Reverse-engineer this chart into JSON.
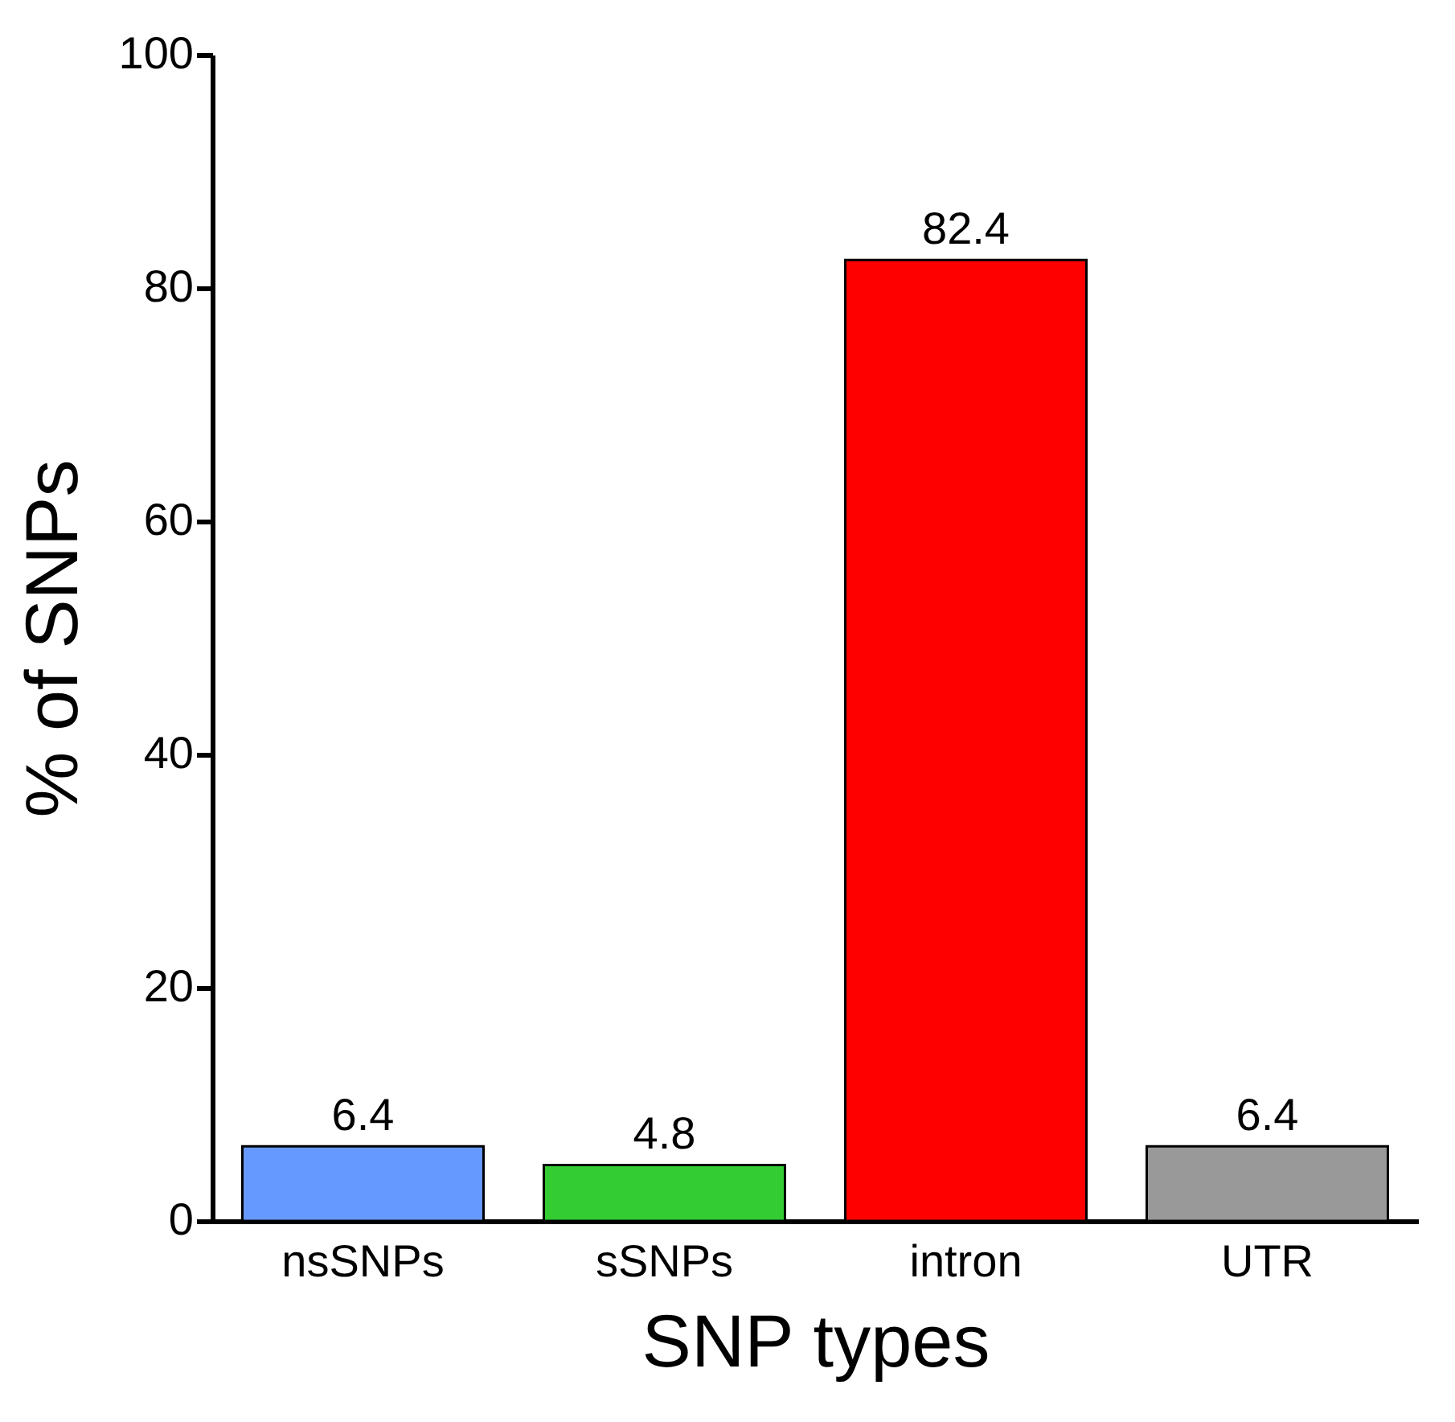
{
  "chart_data": {
    "type": "bar",
    "xlabel": "SNP types",
    "ylabel": "% of SNPs",
    "categories": [
      "nsSNPs",
      "sSNPs",
      "intron",
      "UTR"
    ],
    "values": [
      6.4,
      4.8,
      82.4,
      6.4
    ],
    "colors": [
      "#6699ff",
      "#33cc33",
      "#ff0000",
      "#999999"
    ],
    "ylim": [
      0,
      100
    ],
    "yticks": [
      0,
      20,
      40,
      60,
      80,
      100
    ],
    "grid": false,
    "data_labels": true
  }
}
